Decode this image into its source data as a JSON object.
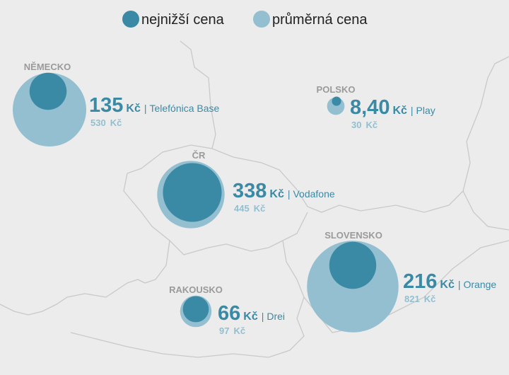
{
  "legend": [
    {
      "name": "nejnižší cena",
      "color": "#3a8aa5"
    },
    {
      "name": "průměrná cena",
      "color": "#93bfd0"
    }
  ],
  "unit": "Kč",
  "separator": "|",
  "regions": [
    {
      "name": "NĚMECKO",
      "lowest": 135,
      "operator": "Telefónica Base",
      "average": 530
    },
    {
      "name": "ČR",
      "lowest": 338,
      "operator": "Vodafone",
      "average": 445
    },
    {
      "name": "POLSKO",
      "lowest": 8.4,
      "lowest_label": "8,40",
      "operator": "Play",
      "average": 30
    },
    {
      "name": "SLOVENSKO",
      "lowest": 216,
      "operator": "Orange",
      "average": 821
    },
    {
      "name": "RAKOUSKO",
      "lowest": 66,
      "operator": "Drei",
      "average": 97
    }
  ]
}
